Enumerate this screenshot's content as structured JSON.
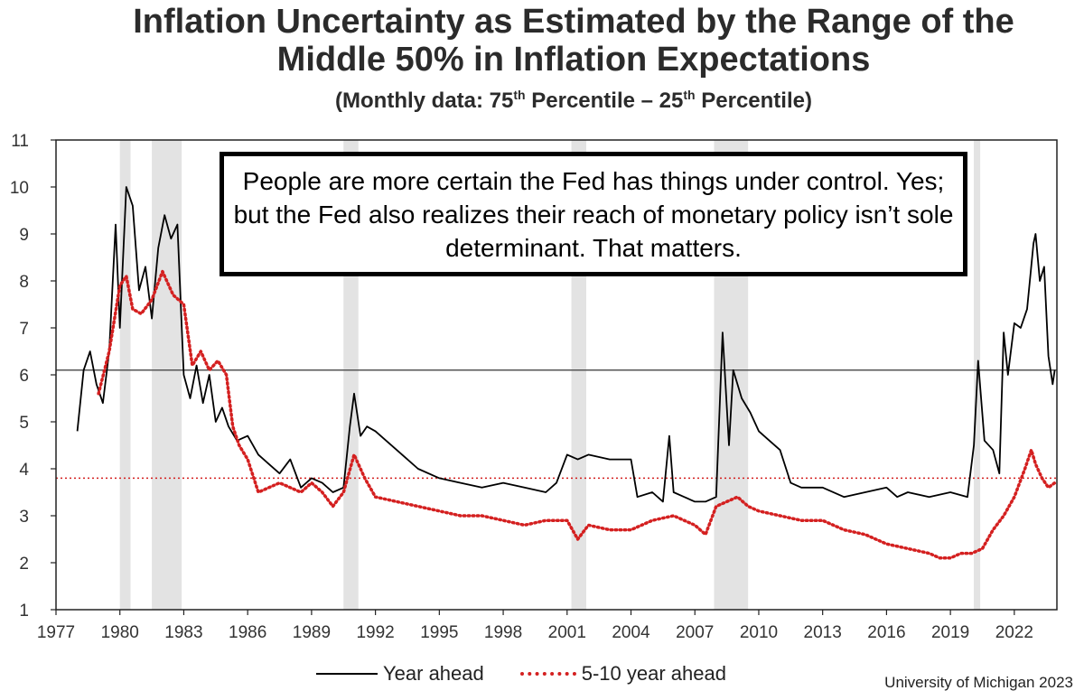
{
  "title_line1": "Inflation Uncertainty as Estimated by the Range of the",
  "title_line2": "Middle 50% in Inflation Expectations",
  "subtitle_pre": "(Monthly data:  75",
  "subtitle_sup1": "th",
  "subtitle_mid": " Percentile – 25",
  "subtitle_sup2": "th",
  "subtitle_post": " Percentile)",
  "callout_text": "People are more certain the Fed has things under control. Yes; but the Fed also realizes their reach of monetary policy isn’t sole determinant. That matters.",
  "source": "University of Michigan 2023",
  "legend": {
    "year_ahead": "Year ahead",
    "five_ten": "5-10 year ahead"
  },
  "colors": {
    "year_ahead": "#000000",
    "five_ten": "#d42020",
    "recession": "#e3e3e3"
  },
  "chart_data": {
    "type": "line",
    "x_range": [
      1977,
      2024
    ],
    "ylim": [
      1,
      11
    ],
    "y_ticks": [
      1,
      2,
      3,
      4,
      5,
      6,
      7,
      8,
      9,
      10,
      11
    ],
    "x_ticks": [
      1977,
      1980,
      1983,
      1986,
      1989,
      1992,
      1995,
      1998,
      2001,
      2004,
      2007,
      2010,
      2013,
      2016,
      2019,
      2022
    ],
    "recessions": [
      [
        1980.0,
        1980.5
      ],
      [
        1981.5,
        1982.9
      ],
      [
        1990.5,
        1991.2
      ],
      [
        2001.2,
        2001.9
      ],
      [
        2007.9,
        2009.5
      ],
      [
        2020.1,
        2020.4
      ]
    ],
    "reference_lines": [
      {
        "y": 6.1,
        "style": "solid",
        "color": "#555555"
      },
      {
        "y": 3.8,
        "style": "dotted",
        "color": "#d42020"
      }
    ],
    "series": [
      {
        "name": "Year ahead",
        "color": "#000000",
        "style": "solid",
        "points": [
          [
            1978.0,
            4.8
          ],
          [
            1978.3,
            6.1
          ],
          [
            1978.6,
            6.5
          ],
          [
            1978.9,
            5.8
          ],
          [
            1979.2,
            5.4
          ],
          [
            1979.5,
            6.5
          ],
          [
            1979.8,
            9.2
          ],
          [
            1980.0,
            7.0
          ],
          [
            1980.3,
            10.0
          ],
          [
            1980.6,
            9.6
          ],
          [
            1980.9,
            7.8
          ],
          [
            1981.2,
            8.3
          ],
          [
            1981.5,
            7.2
          ],
          [
            1981.8,
            8.7
          ],
          [
            1982.1,
            9.4
          ],
          [
            1982.4,
            8.9
          ],
          [
            1982.7,
            9.2
          ],
          [
            1983.0,
            6.0
          ],
          [
            1983.3,
            5.5
          ],
          [
            1983.6,
            6.2
          ],
          [
            1983.9,
            5.4
          ],
          [
            1984.2,
            6.0
          ],
          [
            1984.5,
            5.0
          ],
          [
            1984.8,
            5.3
          ],
          [
            1985.1,
            4.9
          ],
          [
            1985.5,
            4.6
          ],
          [
            1986.0,
            4.7
          ],
          [
            1986.5,
            4.3
          ],
          [
            1987.0,
            4.1
          ],
          [
            1987.5,
            3.9
          ],
          [
            1988.0,
            4.2
          ],
          [
            1988.5,
            3.6
          ],
          [
            1989.0,
            3.8
          ],
          [
            1989.5,
            3.7
          ],
          [
            1990.0,
            3.5
          ],
          [
            1990.5,
            3.6
          ],
          [
            1990.8,
            4.9
          ],
          [
            1991.0,
            5.6
          ],
          [
            1991.3,
            4.7
          ],
          [
            1991.6,
            4.9
          ],
          [
            1992.0,
            4.8
          ],
          [
            1992.5,
            4.6
          ],
          [
            1993.0,
            4.4
          ],
          [
            1993.5,
            4.2
          ],
          [
            1994.0,
            4.0
          ],
          [
            1995.0,
            3.8
          ],
          [
            1996.0,
            3.7
          ],
          [
            1997.0,
            3.6
          ],
          [
            1998.0,
            3.7
          ],
          [
            1999.0,
            3.6
          ],
          [
            2000.0,
            3.5
          ],
          [
            2000.5,
            3.7
          ],
          [
            2001.0,
            4.3
          ],
          [
            2001.5,
            4.2
          ],
          [
            2002.0,
            4.3
          ],
          [
            2003.0,
            4.2
          ],
          [
            2004.0,
            4.2
          ],
          [
            2004.3,
            3.4
          ],
          [
            2005.0,
            3.5
          ],
          [
            2005.5,
            3.3
          ],
          [
            2005.8,
            4.7
          ],
          [
            2006.0,
            3.5
          ],
          [
            2006.5,
            3.4
          ],
          [
            2007.0,
            3.3
          ],
          [
            2007.5,
            3.3
          ],
          [
            2008.0,
            3.4
          ],
          [
            2008.3,
            6.9
          ],
          [
            2008.6,
            4.5
          ],
          [
            2008.8,
            6.1
          ],
          [
            2009.2,
            5.5
          ],
          [
            2009.6,
            5.2
          ],
          [
            2010.0,
            4.8
          ],
          [
            2010.5,
            4.6
          ],
          [
            2011.0,
            4.4
          ],
          [
            2011.5,
            3.7
          ],
          [
            2012.0,
            3.6
          ],
          [
            2013.0,
            3.6
          ],
          [
            2014.0,
            3.4
          ],
          [
            2015.0,
            3.5
          ],
          [
            2016.0,
            3.6
          ],
          [
            2016.5,
            3.4
          ],
          [
            2017.0,
            3.5
          ],
          [
            2018.0,
            3.4
          ],
          [
            2019.0,
            3.5
          ],
          [
            2019.8,
            3.4
          ],
          [
            2020.1,
            4.5
          ],
          [
            2020.3,
            6.3
          ],
          [
            2020.6,
            4.6
          ],
          [
            2021.0,
            4.4
          ],
          [
            2021.3,
            3.9
          ],
          [
            2021.5,
            6.9
          ],
          [
            2021.7,
            6.0
          ],
          [
            2022.0,
            7.1
          ],
          [
            2022.3,
            7.0
          ],
          [
            2022.6,
            7.4
          ],
          [
            2022.9,
            8.8
          ],
          [
            2023.0,
            9.0
          ],
          [
            2023.2,
            8.0
          ],
          [
            2023.4,
            8.3
          ],
          [
            2023.6,
            6.4
          ],
          [
            2023.8,
            5.8
          ],
          [
            2023.9,
            6.1
          ]
        ]
      },
      {
        "name": "5-10 year ahead",
        "color": "#d42020",
        "style": "dotted",
        "points": [
          [
            1979.0,
            5.6
          ],
          [
            1979.5,
            6.5
          ],
          [
            1980.0,
            7.9
          ],
          [
            1980.3,
            8.1
          ],
          [
            1980.6,
            7.4
          ],
          [
            1981.0,
            7.3
          ],
          [
            1981.5,
            7.6
          ],
          [
            1982.0,
            8.2
          ],
          [
            1982.5,
            7.7
          ],
          [
            1983.0,
            7.5
          ],
          [
            1983.4,
            6.2
          ],
          [
            1983.8,
            6.5
          ],
          [
            1984.2,
            6.1
          ],
          [
            1984.6,
            6.3
          ],
          [
            1985.0,
            6.0
          ],
          [
            1985.3,
            4.9
          ],
          [
            1985.6,
            4.5
          ],
          [
            1986.0,
            4.2
          ],
          [
            1986.5,
            3.5
          ],
          [
            1987.0,
            3.6
          ],
          [
            1987.5,
            3.7
          ],
          [
            1988.0,
            3.6
          ],
          [
            1988.5,
            3.5
          ],
          [
            1989.0,
            3.7
          ],
          [
            1989.5,
            3.5
          ],
          [
            1990.0,
            3.2
          ],
          [
            1990.5,
            3.5
          ],
          [
            1991.0,
            4.3
          ],
          [
            1991.5,
            3.8
          ],
          [
            1992.0,
            3.4
          ],
          [
            1993.0,
            3.3
          ],
          [
            1994.0,
            3.2
          ],
          [
            1995.0,
            3.1
          ],
          [
            1996.0,
            3.0
          ],
          [
            1997.0,
            3.0
          ],
          [
            1998.0,
            2.9
          ],
          [
            1999.0,
            2.8
          ],
          [
            2000.0,
            2.9
          ],
          [
            2001.0,
            2.9
          ],
          [
            2001.5,
            2.5
          ],
          [
            2002.0,
            2.8
          ],
          [
            2003.0,
            2.7
          ],
          [
            2004.0,
            2.7
          ],
          [
            2005.0,
            2.9
          ],
          [
            2006.0,
            3.0
          ],
          [
            2007.0,
            2.8
          ],
          [
            2007.5,
            2.6
          ],
          [
            2008.0,
            3.2
          ],
          [
            2008.5,
            3.3
          ],
          [
            2009.0,
            3.4
          ],
          [
            2009.5,
            3.2
          ],
          [
            2010.0,
            3.1
          ],
          [
            2011.0,
            3.0
          ],
          [
            2012.0,
            2.9
          ],
          [
            2013.0,
            2.9
          ],
          [
            2014.0,
            2.7
          ],
          [
            2015.0,
            2.6
          ],
          [
            2016.0,
            2.4
          ],
          [
            2017.0,
            2.3
          ],
          [
            2018.0,
            2.2
          ],
          [
            2018.5,
            2.1
          ],
          [
            2019.0,
            2.1
          ],
          [
            2019.5,
            2.2
          ],
          [
            2020.0,
            2.2
          ],
          [
            2020.5,
            2.3
          ],
          [
            2021.0,
            2.7
          ],
          [
            2021.5,
            3.0
          ],
          [
            2022.0,
            3.4
          ],
          [
            2022.5,
            4.0
          ],
          [
            2022.8,
            4.4
          ],
          [
            2023.0,
            4.1
          ],
          [
            2023.3,
            3.8
          ],
          [
            2023.6,
            3.6
          ],
          [
            2023.9,
            3.7
          ]
        ]
      }
    ]
  }
}
